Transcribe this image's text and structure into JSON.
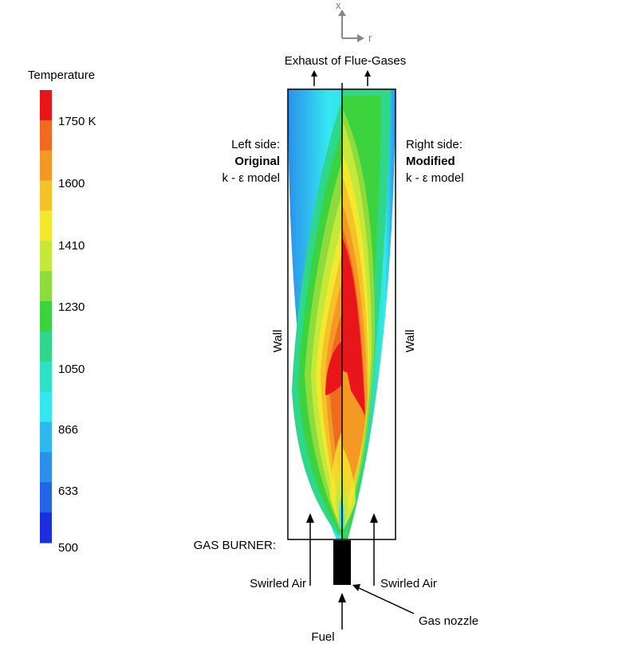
{
  "axes": {
    "x_label": "x",
    "r_label": "r"
  },
  "colorbar": {
    "title": "Temperature",
    "tick_labels": [
      "1750 K",
      "1600",
      "1410",
      "1230",
      "1050",
      "866",
      "633",
      "500"
    ],
    "colors": [
      "#e8151b",
      "#f06a1f",
      "#f49a24",
      "#f6c22a",
      "#f2e92e",
      "#c5e83a",
      "#8ddc3b",
      "#3cd33f",
      "#2fd78a",
      "#2ee0c4",
      "#35e8ef",
      "#2fb8ee",
      "#2a90ea",
      "#2465e6",
      "#1c2fe0"
    ]
  },
  "labels": {
    "exhaust": "Exhaust of Flue-Gases",
    "left_side_line1": "Left side:",
    "left_side_line2": "Original",
    "left_side_line3": "k - ε model",
    "right_side_line1": "Right side:",
    "right_side_line2": "Modified",
    "right_side_line3": "k - ε model",
    "wall_left": "Wall",
    "wall_right": "Wall",
    "gas_burner": "GAS BURNER:",
    "swirled_air_left": "Swirled Air",
    "swirled_air_right": "Swirled Air",
    "gas_nozzle": "Gas nozzle",
    "fuel": "Fuel"
  }
}
